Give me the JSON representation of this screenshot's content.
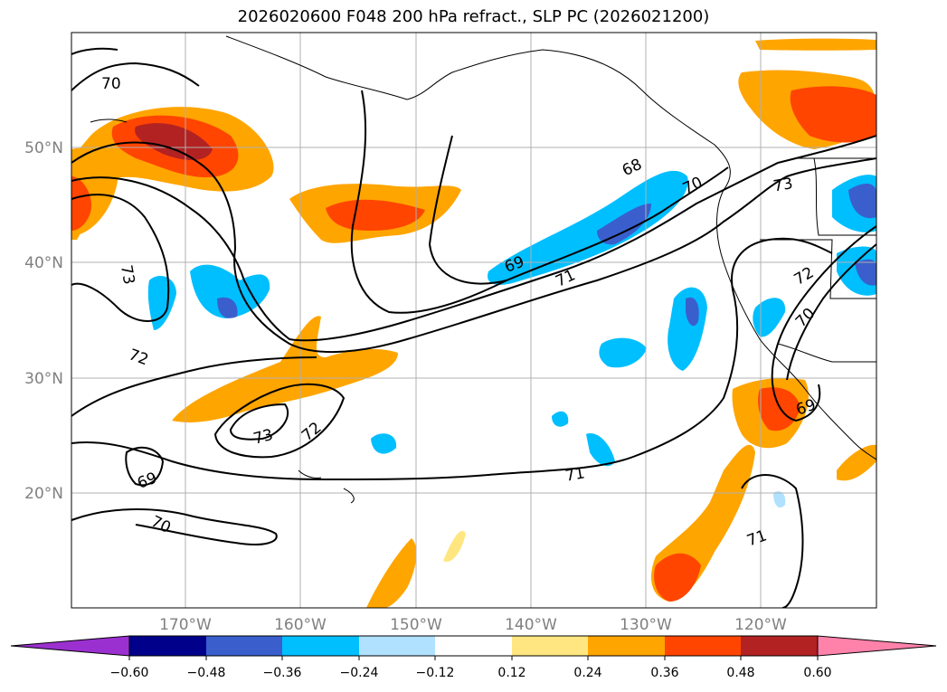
{
  "title": "2026020600 F048 200 hPa refract., SLP PC (2026021200)",
  "map": {
    "lon_range": [
      -180,
      -110
    ],
    "lat_range": [
      10,
      60
    ],
    "lat_ticks": [
      "20°N",
      "30°N",
      "40°N",
      "50°N"
    ],
    "lon_ticks": [
      "170°W",
      "160°W",
      "150°W",
      "140°W",
      "130°W",
      "120°W"
    ],
    "grid": true,
    "contour_labels": [
      "70",
      "73",
      "72",
      "69",
      "73",
      "72",
      "70",
      "68",
      "69",
      "71",
      "70",
      "73",
      "72",
      "70",
      "69",
      "71",
      "71"
    ]
  },
  "colorbar": {
    "ticks": [
      "−0.60",
      "−0.48",
      "−0.36",
      "−0.24",
      "−0.12",
      "0.12",
      "0.24",
      "0.36",
      "0.48",
      "0.60"
    ],
    "colors": [
      "#9b30d0",
      "#00008b",
      "#3a5fcd",
      "#00bfff",
      "#b0e2ff",
      "#ffffff",
      "#ffe680",
      "#ffa500",
      "#ff4500",
      "#b22222",
      "#ff82ab"
    ]
  }
}
